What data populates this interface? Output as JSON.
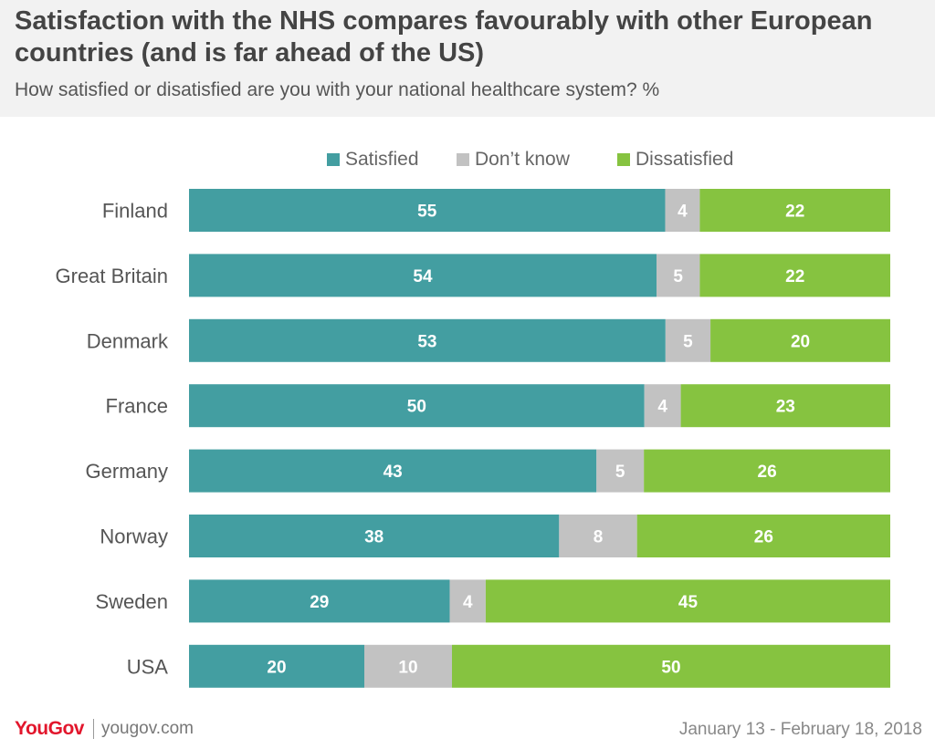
{
  "header": {
    "title": "Satisfaction with the NHS compares favourably with other European countries (and is far ahead of the US)",
    "subtitle": "How satisfied or disatisfied are you with your national healthcare system? %"
  },
  "footer": {
    "brand": "YouGov",
    "url": "yougov.com",
    "date": "January 13 - February 18, 2018"
  },
  "chart_data": {
    "type": "bar",
    "orientation": "horizontal",
    "stacked": true,
    "categories": [
      "Finland",
      "Great Britain",
      "Denmark",
      "France",
      "Germany",
      "Norway",
      "Sweden",
      "USA"
    ],
    "series": [
      {
        "name": "Satisfied",
        "color": "#439ea1",
        "values": [
          55,
          54,
          53,
          50,
          43,
          38,
          29,
          20
        ]
      },
      {
        "name": "Don’t know",
        "color": "#c2c2c2",
        "values": [
          4,
          5,
          5,
          4,
          5,
          8,
          4,
          10
        ]
      },
      {
        "name": "Dissatisfied",
        "color": "#86c340",
        "values": [
          22,
          22,
          20,
          23,
          26,
          26,
          45,
          50
        ]
      }
    ],
    "legend_position": "top",
    "grid": false,
    "data_labels": true
  }
}
